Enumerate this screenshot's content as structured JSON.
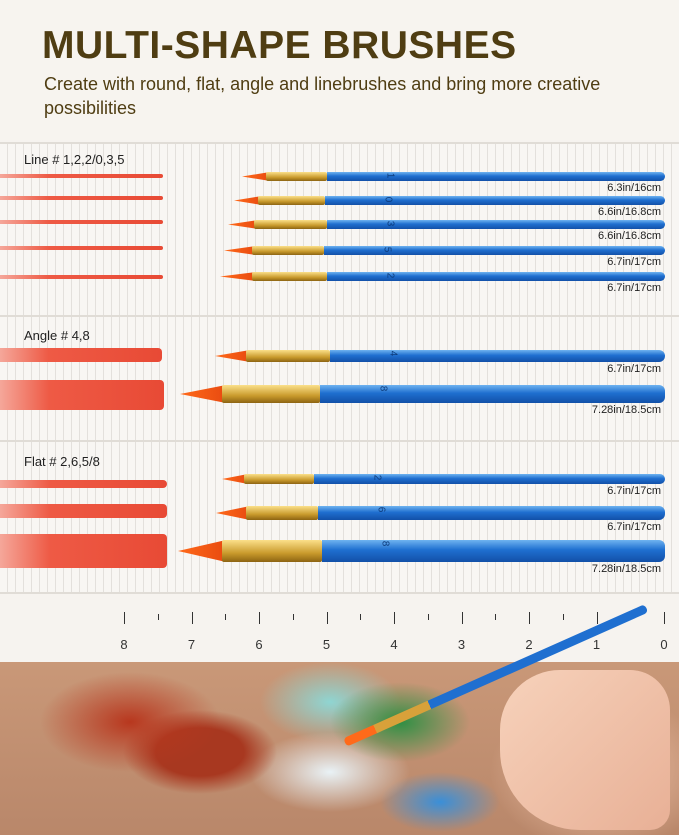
{
  "header": {
    "title": "MULTI-SHAPE BRUSHES",
    "subtitle": "Create with round, flat, angle and linebrushes and bring more creative possibilities"
  },
  "sections": [
    {
      "label": "Line # 1,2,2/0,3,5",
      "brushes": [
        {
          "number": "1",
          "length": "6.3in/16cm"
        },
        {
          "number": "0",
          "length": "6.6in/16.8cm"
        },
        {
          "number": "3",
          "length": "6.6in/16.8cm"
        },
        {
          "number": "5",
          "length": "6.7in/17cm"
        },
        {
          "number": "2",
          "length": "6.7in/17cm"
        }
      ]
    },
    {
      "label": "Angle # 4,8",
      "brushes": [
        {
          "number": "4",
          "length": "6.7in/17cm"
        },
        {
          "number": "8",
          "length": "7.28in/18.5cm"
        }
      ]
    },
    {
      "label": "Flat # 2,6,5/8",
      "brushes": [
        {
          "number": "2",
          "length": "6.7in/17cm"
        },
        {
          "number": "6",
          "length": "6.7in/17cm"
        },
        {
          "number": "8",
          "length": "7.28in/18.5cm"
        }
      ]
    }
  ],
  "ruler": {
    "unit": "in",
    "labels": [
      "8",
      "7",
      "6",
      "5",
      "4",
      "3",
      "2",
      "1",
      "0"
    ]
  },
  "colors": {
    "title": "#4f3d12",
    "handle": "#1f6fd0",
    "bristle": "#ff6a1a",
    "ferrule": "#d8a13a",
    "paint": "#e84a35"
  }
}
